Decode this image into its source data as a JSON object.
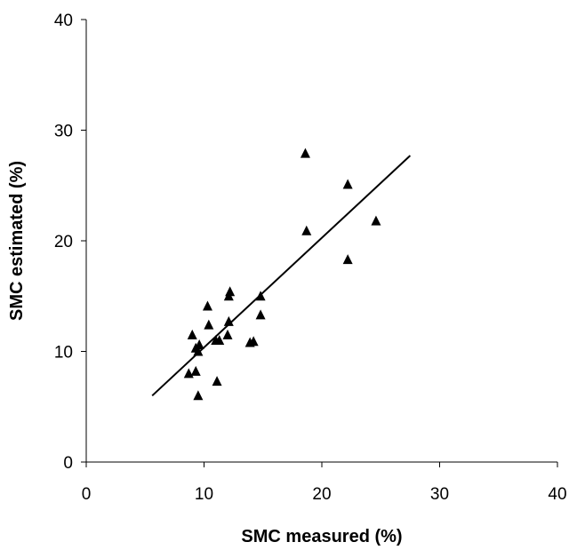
{
  "chart_data": {
    "type": "scatter",
    "title": "",
    "xlabel": "SMC measured (%)",
    "ylabel": "SMC estimated (%)",
    "xlim": [
      0,
      40
    ],
    "ylim": [
      0,
      40
    ],
    "x_ticks": [
      "0",
      "10",
      "20",
      "30",
      "40"
    ],
    "y_ticks": [
      "0",
      "10",
      "20",
      "30",
      "40"
    ],
    "grid": false,
    "legend": "none",
    "marker": "triangle",
    "marker_color": "#000000",
    "series": [
      {
        "points": [
          [
            8.7,
            8.0
          ],
          [
            9.0,
            11.5
          ],
          [
            9.3,
            8.2
          ],
          [
            9.3,
            10.3
          ],
          [
            9.5,
            10.0
          ],
          [
            9.5,
            6.0
          ],
          [
            9.6,
            10.6
          ],
          [
            10.3,
            14.1
          ],
          [
            10.4,
            12.4
          ],
          [
            11.0,
            11.0
          ],
          [
            11.1,
            7.3
          ],
          [
            11.3,
            11.0
          ],
          [
            12.0,
            11.5
          ],
          [
            12.1,
            12.7
          ],
          [
            12.1,
            15.0
          ],
          [
            12.2,
            15.4
          ],
          [
            13.9,
            10.8
          ],
          [
            14.2,
            10.9
          ],
          [
            14.8,
            13.3
          ],
          [
            14.8,
            15.0
          ],
          [
            18.6,
            27.9
          ],
          [
            18.7,
            20.9
          ],
          [
            22.2,
            25.1
          ],
          [
            22.2,
            18.3
          ],
          [
            24.6,
            21.8
          ]
        ]
      }
    ],
    "trendline": {
      "x": [
        5.6,
        27.5
      ],
      "y": [
        6.0,
        27.7
      ]
    }
  }
}
